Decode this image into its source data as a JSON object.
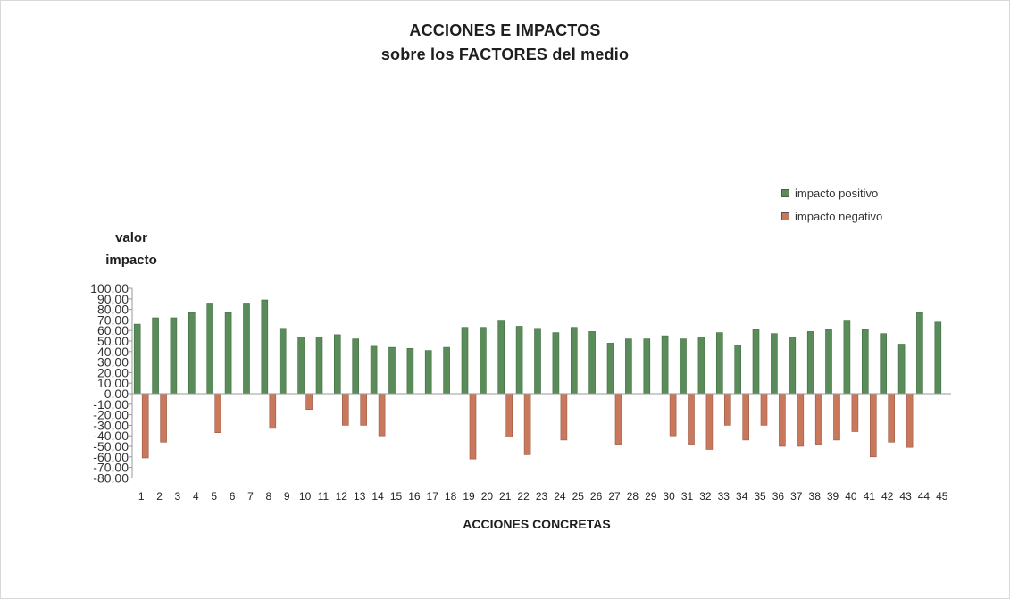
{
  "chart_data": {
    "type": "bar",
    "title": "ACCIONES E IMPACTOS",
    "subtitle": "sobre los FACTORES del medio",
    "ylabel": [
      "valor",
      "impacto"
    ],
    "xlabel": "ACCIONES CONCRETAS",
    "ylim": [
      -80,
      100
    ],
    "yticks": [
      {
        "value": 100,
        "label": "100,00"
      },
      {
        "value": 90,
        "label": "90,00"
      },
      {
        "value": 80,
        "label": "80,00"
      },
      {
        "value": 70,
        "label": "70,00"
      },
      {
        "value": 60,
        "label": "60,00"
      },
      {
        "value": 50,
        "label": "50,00"
      },
      {
        "value": 40,
        "label": "40,00"
      },
      {
        "value": 30,
        "label": "30,00"
      },
      {
        "value": 20,
        "label": "20,00"
      },
      {
        "value": 10,
        "label": "10,00"
      },
      {
        "value": 0,
        "label": "0,00"
      },
      {
        "value": -10,
        "label": "-10,00"
      },
      {
        "value": -20,
        "label": "-20,00"
      },
      {
        "value": -30,
        "label": "-30,00"
      },
      {
        "value": -40,
        "label": "-40,00"
      },
      {
        "value": -50,
        "label": "-50,00"
      },
      {
        "value": -60,
        "label": "-60,00"
      },
      {
        "value": -70,
        "label": "-70,00"
      },
      {
        "value": -80,
        "label": "-80,00"
      }
    ],
    "grid": false,
    "legend_position": "right",
    "categories": [
      "1",
      "2",
      "3",
      "4",
      "5",
      "6",
      "7",
      "8",
      "9",
      "10",
      "11",
      "12",
      "13",
      "14",
      "15",
      "16",
      "17",
      "18",
      "19",
      "20",
      "21",
      "22",
      "23",
      "24",
      "25",
      "26",
      "27",
      "28",
      "29",
      "30",
      "31",
      "32",
      "33",
      "34",
      "35",
      "36",
      "37",
      "38",
      "39",
      "40",
      "41",
      "42",
      "43",
      "44",
      "45"
    ],
    "series": [
      {
        "name": "impacto positivo",
        "color": "#5a8c5a",
        "values": [
          66,
          72,
          72,
          77,
          86,
          77,
          86,
          89,
          62,
          54,
          54,
          56,
          52,
          45,
          44,
          43,
          41,
          44,
          63,
          63,
          69,
          64,
          62,
          58,
          63,
          59,
          48,
          52,
          52,
          55,
          52,
          54,
          58,
          46,
          61,
          57,
          54,
          59,
          61,
          69,
          61,
          57,
          47,
          77,
          68
        ]
      },
      {
        "name": "impacto negativo",
        "color": "#c9785c",
        "values": [
          -61,
          -46,
          0,
          0,
          -37,
          0,
          0,
          -33,
          0,
          -15,
          0,
          -30,
          -30,
          -40,
          0,
          0,
          0,
          0,
          -62,
          0,
          -41,
          -58,
          0,
          -44,
          0,
          0,
          -48,
          0,
          0,
          -40,
          -48,
          -53,
          -30,
          -44,
          -30,
          -50,
          -50,
          -48,
          -44,
          -36,
          -60,
          -46,
          -51,
          0,
          0
        ]
      }
    ]
  }
}
